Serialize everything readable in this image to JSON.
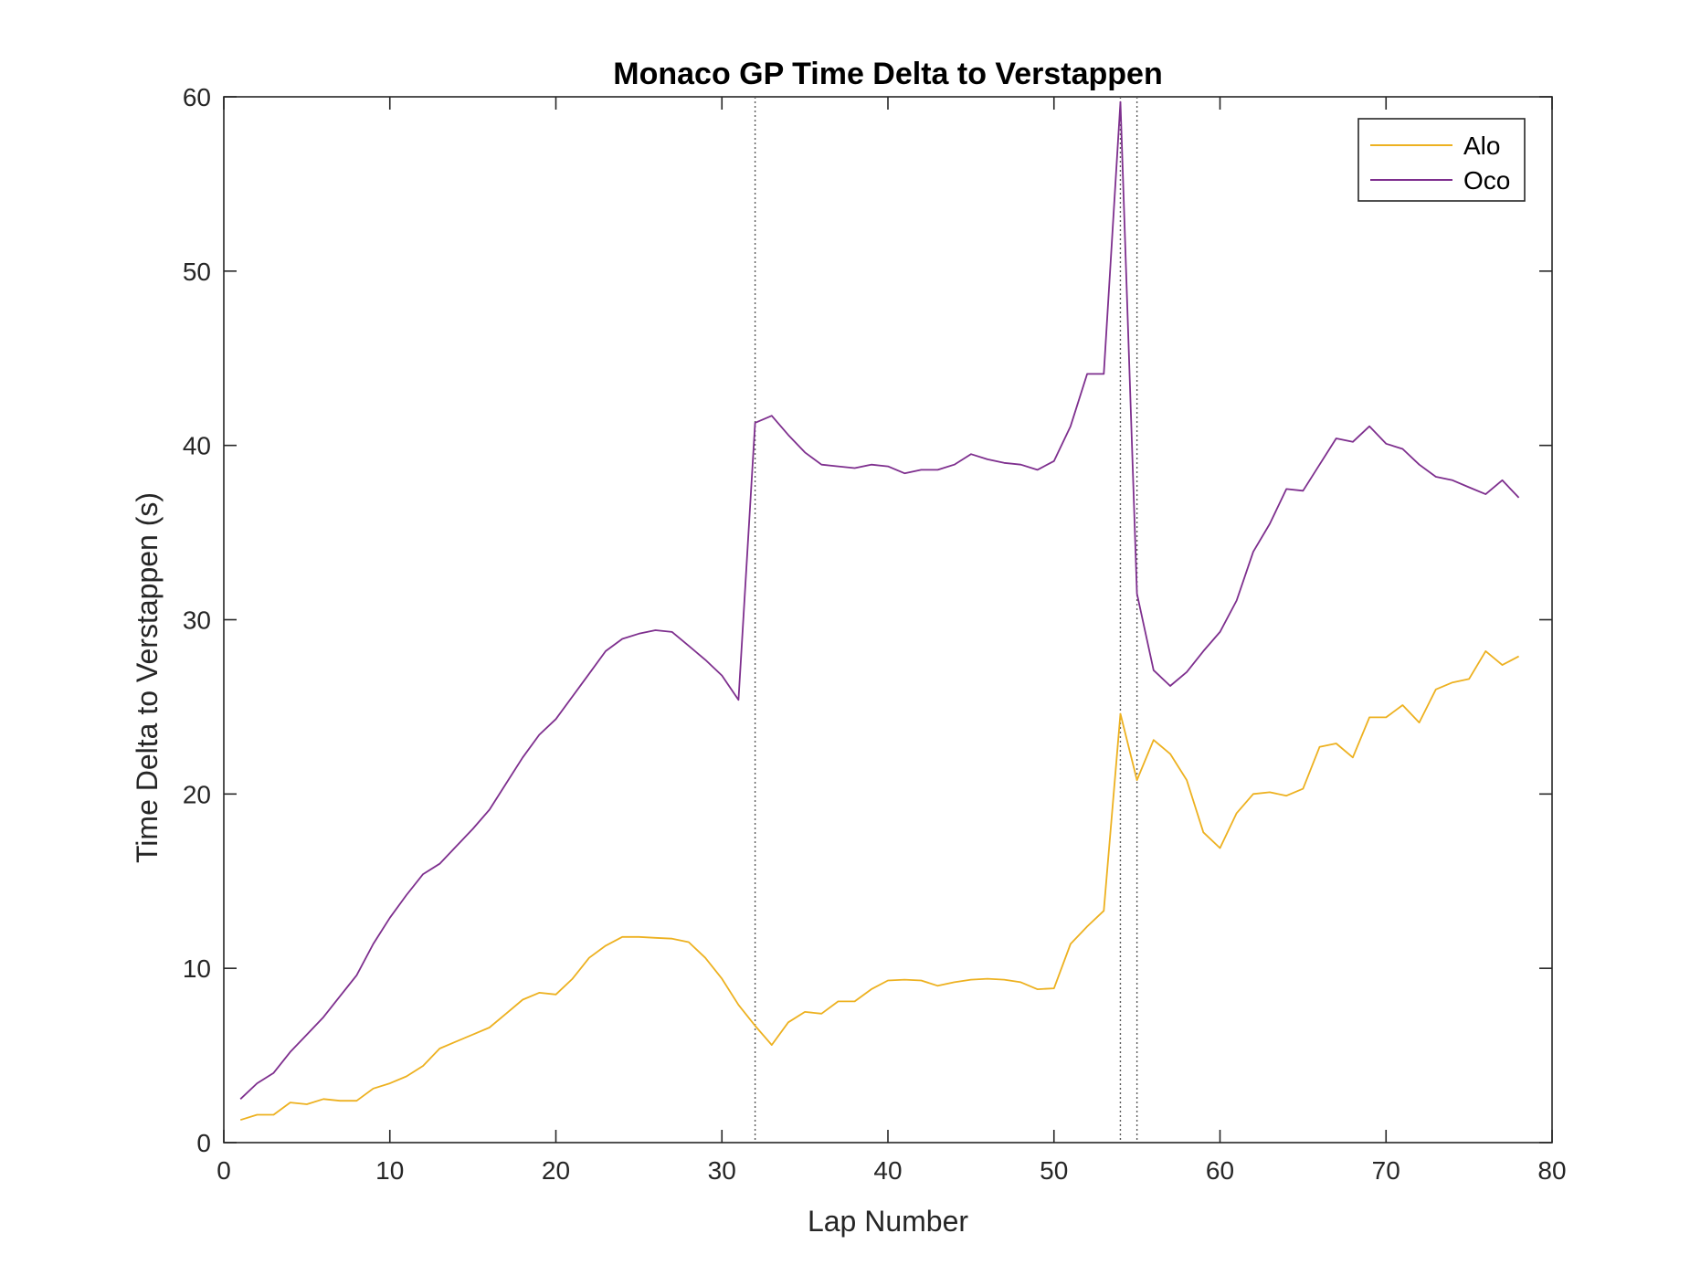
{
  "chart_data": {
    "type": "line",
    "title": "Monaco GP Time Delta to Verstappen",
    "xlabel": "Lap Number",
    "ylabel": "Time Delta to Verstappen (s)",
    "xlim": [
      0,
      80
    ],
    "ylim": [
      0,
      60
    ],
    "xticks": [
      0,
      10,
      20,
      30,
      40,
      50,
      60,
      70,
      80
    ],
    "yticks": [
      0,
      10,
      20,
      30,
      40,
      50,
      60
    ],
    "grid": false,
    "legend_position": "top-right",
    "vertical_markers": [
      32,
      54,
      55
    ],
    "x": [
      1,
      2,
      3,
      4,
      5,
      6,
      7,
      8,
      9,
      10,
      11,
      12,
      13,
      14,
      15,
      16,
      17,
      18,
      19,
      20,
      21,
      22,
      23,
      24,
      25,
      26,
      27,
      28,
      29,
      30,
      31,
      32,
      33,
      34,
      35,
      36,
      37,
      38,
      39,
      40,
      41,
      42,
      43,
      44,
      45,
      46,
      47,
      48,
      49,
      50,
      51,
      52,
      53,
      54,
      55,
      56,
      57,
      58,
      59,
      60,
      61,
      62,
      63,
      64,
      65,
      66,
      67,
      68,
      69,
      70,
      71,
      72,
      73,
      74,
      75,
      76,
      77,
      78
    ],
    "series": [
      {
        "name": "Alo",
        "color": "#EDB120",
        "values": [
          1.3,
          1.6,
          1.6,
          2.3,
          2.2,
          2.5,
          2.4,
          2.4,
          3.1,
          3.4,
          3.8,
          4.4,
          5.4,
          5.8,
          6.2,
          6.6,
          7.4,
          8.2,
          8.6,
          8.5,
          9.4,
          10.6,
          11.3,
          11.8,
          11.8,
          11.75,
          11.7,
          11.5,
          10.6,
          9.4,
          7.9,
          6.7,
          5.6,
          6.9,
          7.5,
          7.4,
          8.1,
          8.1,
          8.8,
          9.3,
          9.35,
          9.3,
          9.0,
          9.2,
          9.35,
          9.4,
          9.35,
          9.2,
          8.8,
          8.85,
          11.4,
          12.4,
          13.3,
          24.6,
          20.8,
          23.1,
          22.3,
          20.8,
          17.8,
          16.9,
          18.9,
          20.0,
          20.1,
          19.9,
          20.3,
          22.7,
          22.9,
          22.1,
          24.4,
          24.4,
          25.1,
          24.1,
          26.0,
          26.4,
          26.6,
          28.2,
          27.4,
          27.9
        ]
      },
      {
        "name": "Oco",
        "color": "#7E2F8E",
        "values": [
          2.5,
          3.4,
          4.0,
          5.2,
          6.2,
          7.2,
          8.4,
          9.6,
          11.4,
          12.9,
          14.2,
          15.4,
          16.0,
          17.0,
          18.0,
          19.1,
          20.6,
          22.1,
          23.4,
          24.3,
          25.6,
          26.9,
          28.2,
          28.9,
          29.2,
          29.4,
          29.3,
          28.5,
          27.7,
          26.8,
          25.4,
          41.3,
          41.7,
          40.6,
          39.6,
          38.9,
          38.8,
          38.7,
          38.9,
          38.8,
          38.4,
          38.6,
          38.6,
          38.9,
          39.5,
          39.2,
          39.0,
          38.9,
          38.6,
          39.1,
          41.1,
          44.1,
          44.1,
          59.7,
          31.5,
          27.1,
          26.2,
          27.0,
          28.2,
          29.3,
          31.1,
          33.9,
          35.5,
          37.5,
          37.4,
          38.9,
          40.4,
          40.2,
          41.1,
          40.1,
          39.8,
          38.9,
          38.2,
          38.0,
          37.6,
          37.2,
          38.0,
          37.0
        ]
      }
    ]
  }
}
